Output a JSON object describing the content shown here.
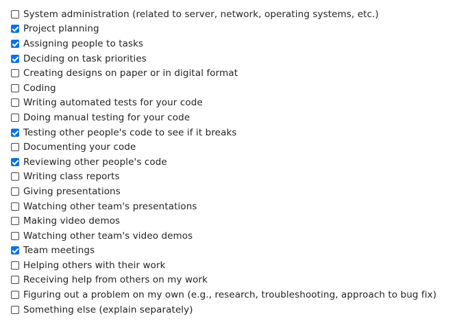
{
  "options": [
    {
      "label": "System administration (related to server, network, operating systems, etc.)",
      "checked": false
    },
    {
      "label": "Project planning",
      "checked": true
    },
    {
      "label": "Assigning people to tasks",
      "checked": true
    },
    {
      "label": "Deciding on task priorities",
      "checked": true
    },
    {
      "label": "Creating designs on paper or in digital format",
      "checked": false
    },
    {
      "label": "Coding",
      "checked": false
    },
    {
      "label": "Writing automated tests for your code",
      "checked": false
    },
    {
      "label": "Doing manual testing for your code",
      "checked": false
    },
    {
      "label": "Testing other people's code to see if it breaks",
      "checked": true
    },
    {
      "label": "Documenting your code",
      "checked": false
    },
    {
      "label": "Reviewing other people's code",
      "checked": true
    },
    {
      "label": "Writing class reports",
      "checked": false
    },
    {
      "label": "Giving presentations",
      "checked": false
    },
    {
      "label": "Watching other team's presentations",
      "checked": false
    },
    {
      "label": "Making video demos",
      "checked": false
    },
    {
      "label": "Watching other team's video demos",
      "checked": false
    },
    {
      "label": "Team meetings",
      "checked": true
    },
    {
      "label": "Helping others with their work",
      "checked": false
    },
    {
      "label": "Receiving help from others on my work",
      "checked": false
    },
    {
      "label": "Figuring out a problem on my own (e.g., research, troubleshooting, approach to bug fix)",
      "checked": false
    },
    {
      "label": "Something else (explain separately)",
      "checked": false
    }
  ],
  "colors": {
    "checked_fill": "#0b72e7",
    "unchecked_border": "#444444",
    "text": "#222222"
  }
}
